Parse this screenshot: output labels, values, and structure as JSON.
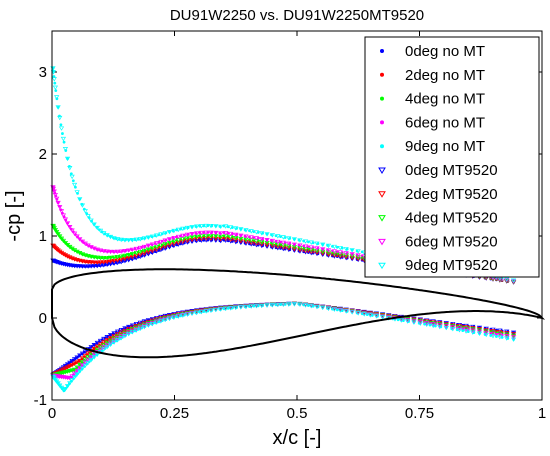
{
  "chart_data": {
    "type": "scatter",
    "title": "DU91W2250 vs. DU91W2250MT9520",
    "xlabel": "x/c [-]",
    "ylabel": "-cp [-]",
    "xlim": [
      0,
      1
    ],
    "ylim": [
      -1,
      3.5
    ],
    "xticks": [
      "0",
      "0.25",
      "0.5",
      "0.75",
      "1"
    ],
    "yticks": [
      "-1",
      "0",
      "1",
      "2",
      "3"
    ],
    "grid": false,
    "legend_position": "top-right",
    "airfoil_outline_color": "#000000",
    "series": [
      {
        "name": "0deg no MT",
        "marker": "dot",
        "color": "#0000ff",
        "angle": 0,
        "upper_peak": 1.03
      },
      {
        "name": "2deg no MT",
        "marker": "dot",
        "color": "#ff0000",
        "angle": 2,
        "upper_peak": 1.2
      },
      {
        "name": "4deg no MT",
        "marker": "dot",
        "color": "#00ff00",
        "angle": 4,
        "upper_peak": 1.42
      },
      {
        "name": "6deg no MT",
        "marker": "dot",
        "color": "#ff00ff",
        "angle": 6,
        "upper_peak": 1.87
      },
      {
        "name": "9deg no MT",
        "marker": "dot",
        "color": "#00ffff",
        "angle": 9,
        "upper_peak": 3.3
      },
      {
        "name": "0deg MT9520",
        "marker": "triangle-down",
        "color": "#0000ff",
        "angle": 0,
        "upper_peak": 1.03
      },
      {
        "name": "2deg MT9520",
        "marker": "triangle-down",
        "color": "#ff0000",
        "angle": 2,
        "upper_peak": 1.2
      },
      {
        "name": "4deg MT9520",
        "marker": "triangle-down",
        "color": "#00ff00",
        "angle": 4,
        "upper_peak": 1.42
      },
      {
        "name": "6deg MT9520",
        "marker": "triangle-down",
        "color": "#ff00ff",
        "angle": 6,
        "upper_peak": 1.87
      },
      {
        "name": "9deg MT9520",
        "marker": "triangle-down",
        "color": "#00ffff",
        "angle": 9,
        "upper_peak": 3.3
      }
    ]
  }
}
